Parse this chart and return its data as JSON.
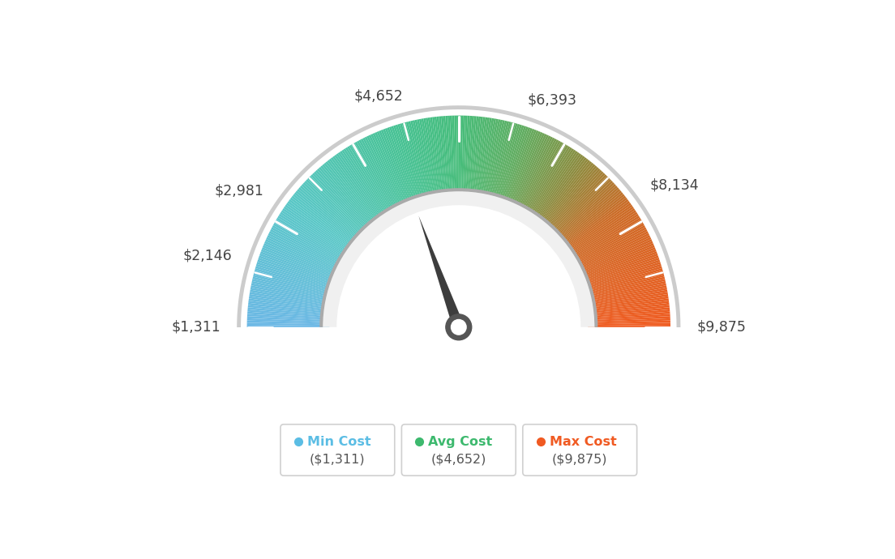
{
  "min_val": 1311,
  "max_val": 9875,
  "avg_val": 4652,
  "min_cost_label": "Min Cost",
  "avg_cost_label": "Avg Cost",
  "max_cost_label": "Max Cost",
  "min_cost_value": "($1,311)",
  "avg_cost_value": "($4,652)",
  "max_cost_value": "($9,875)",
  "min_color": "#5bbde4",
  "avg_color": "#3db96e",
  "max_color": "#f05a22",
  "background_color": "#ffffff",
  "color_stops": [
    [
      0.0,
      [
        0.42,
        0.72,
        0.9
      ]
    ],
    [
      0.2,
      [
        0.35,
        0.78,
        0.78
      ]
    ],
    [
      0.4,
      [
        0.28,
        0.76,
        0.58
      ]
    ],
    [
      0.5,
      [
        0.28,
        0.74,
        0.48
      ]
    ],
    [
      0.6,
      [
        0.38,
        0.68,
        0.38
      ]
    ],
    [
      0.7,
      [
        0.55,
        0.55,
        0.25
      ]
    ],
    [
      0.8,
      [
        0.8,
        0.42,
        0.15
      ]
    ],
    [
      1.0,
      [
        0.94,
        0.36,
        0.13
      ]
    ]
  ],
  "label_values": [
    1311,
    2146,
    2981,
    4652,
    6393,
    8134,
    9875
  ],
  "label_texts": [
    "$1,311",
    "$2,146",
    "$2,981",
    "$4,652",
    "$6,393",
    "$8,134",
    "$9,875"
  ]
}
